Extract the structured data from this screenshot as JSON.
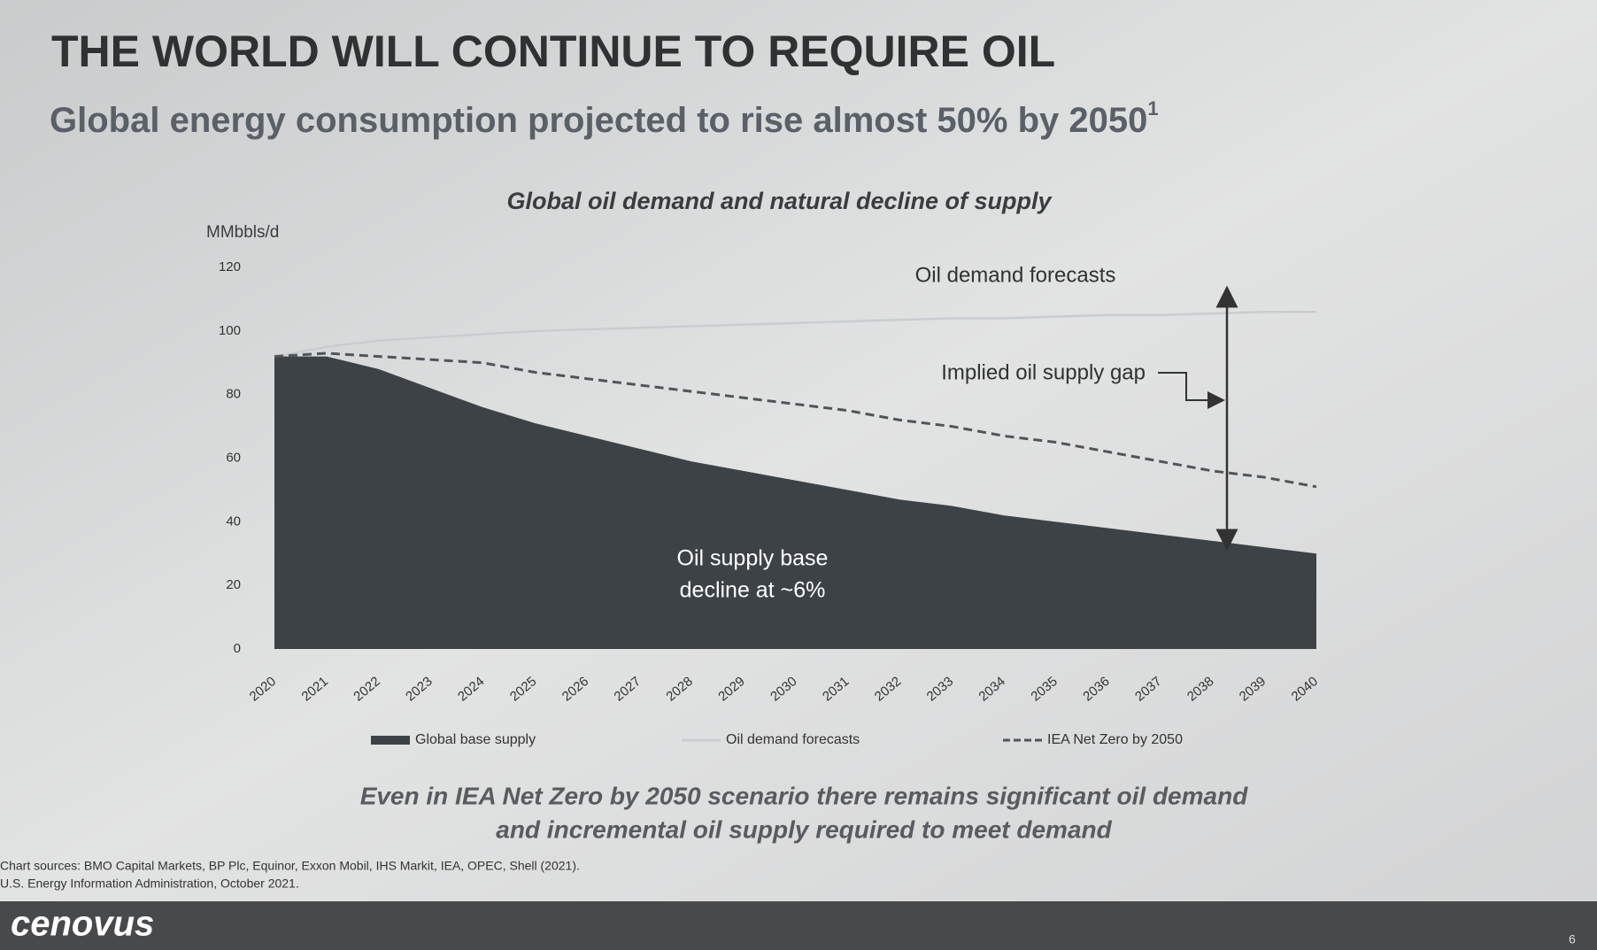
{
  "slide": {
    "title": "THE WORLD WILL CONTINUE TO REQUIRE OIL",
    "subtitle": "Global energy consumption projected to rise almost 50% by 2050",
    "subtitle_note": "1",
    "caption": [
      "Even in IEA Net Zero by 2050 scenario there remains significant oil demand",
      "and incremental oil supply required to meet demand"
    ],
    "footnotes": [
      "Chart sources: BMO Capital Markets, BP Plc, Equinor, Exxon Mobil, IHS Markit, IEA, OPEC, Shell (2021).",
      "U.S. Energy Information Administration, October 2021."
    ],
    "logo": "cenovus",
    "page": "6"
  },
  "chart_data": {
    "type": "area",
    "title": "Global oil demand and natural decline of supply",
    "y_label": "MMbbls/d",
    "categories": [
      "2020",
      "2021",
      "2022",
      "2023",
      "2024",
      "2025",
      "2026",
      "2027",
      "2028",
      "2029",
      "2030",
      "2031",
      "2032",
      "2033",
      "2034",
      "2035",
      "2036",
      "2037",
      "2038",
      "2039",
      "2040"
    ],
    "ylim": [
      0,
      120
    ],
    "yticks": [
      0,
      20,
      40,
      60,
      80,
      100,
      120
    ],
    "series": [
      {
        "name": "Global base supply",
        "type": "area",
        "color": "#3d4247",
        "values": [
          92,
          92,
          88,
          82,
          76,
          71,
          67,
          63,
          59,
          56,
          53,
          50,
          47,
          45,
          42,
          40,
          38,
          36,
          34,
          32,
          30
        ]
      },
      {
        "name": "Oil demand forecasts",
        "type": "line",
        "color": "#c9cdd1",
        "values": [
          92,
          95,
          97,
          98,
          99,
          100,
          100.5,
          101,
          101.5,
          102,
          102.5,
          103,
          103.5,
          104,
          104,
          104.5,
          105,
          105,
          105.5,
          106,
          106
        ]
      },
      {
        "name": "IEA Net Zero by 2050",
        "type": "line",
        "dashed": true,
        "color": "#50555a",
        "values": [
          92,
          93,
          92,
          91,
          90,
          87,
          85,
          83,
          81,
          79,
          77,
          75,
          72,
          70,
          67,
          65,
          62,
          59,
          56,
          54,
          51
        ]
      }
    ],
    "annotations": [
      "Oil demand forecasts",
      "Implied oil supply gap",
      "Oil supply base",
      "decline at ~6%"
    ]
  }
}
